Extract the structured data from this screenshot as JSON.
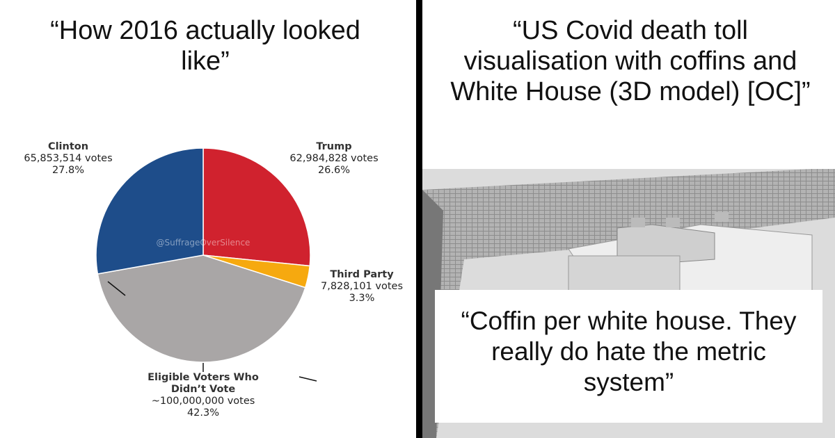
{
  "left_title": "“How 2016 actually looked like”",
  "right_title": "“US Covid death toll visualisation with coffins and White House (3D model) [OC]”",
  "right_caption": "“Coffin per white house. They really do hate the metric system”",
  "chart_data": {
    "type": "pie",
    "categories": [
      "Trump",
      "Third Party",
      "Eligible Voters Who Didn’t Vote",
      "Clinton"
    ],
    "vote_labels": [
      "62,984,828 votes",
      "7,828,101 votes",
      "~100,000,000 votes",
      "65,853,514 votes"
    ],
    "values": [
      26.6,
      3.3,
      42.3,
      27.8
    ],
    "value_labels": [
      "26.6%",
      "3.3%",
      "42.3%",
      "27.8%"
    ],
    "colors": [
      "#d0222e",
      "#f6a90f",
      "#a9a6a6",
      "#1e4d8a"
    ],
    "watermark": "@SuffrageOverSilence"
  }
}
